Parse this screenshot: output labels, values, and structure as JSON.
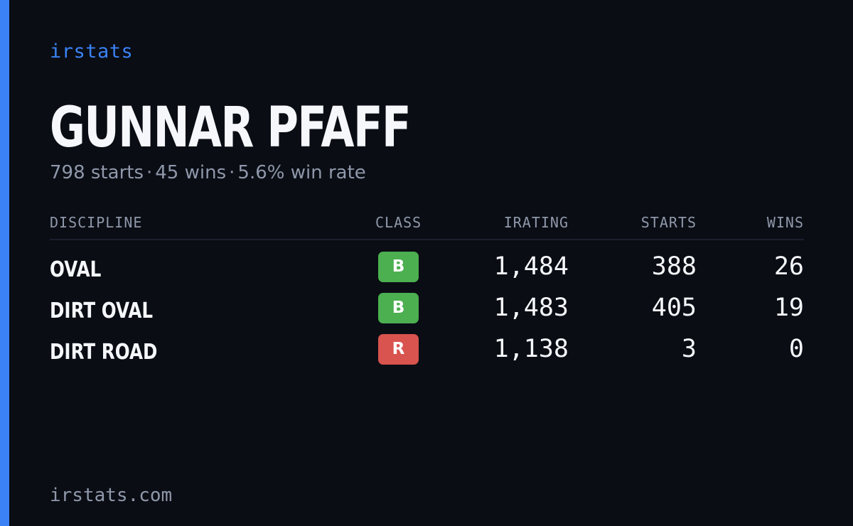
{
  "brand": "irstats",
  "driver": {
    "name": "GUNNAR PFAFF"
  },
  "summary": {
    "starts": "798 starts",
    "wins": "45 wins",
    "win_rate": "5.6% win rate",
    "separator": "·"
  },
  "table": {
    "headers": {
      "discipline": "DISCIPLINE",
      "class": "CLASS",
      "irating": "IRATING",
      "starts": "STARTS",
      "wins": "WINS"
    },
    "rows": [
      {
        "discipline": "OVAL",
        "class": "B",
        "class_color": "#4caf50",
        "irating": "1,484",
        "starts": "388",
        "wins": "26"
      },
      {
        "discipline": "DIRT OVAL",
        "class": "B",
        "class_color": "#4caf50",
        "irating": "1,483",
        "starts": "405",
        "wins": "19"
      },
      {
        "discipline": "DIRT ROAD",
        "class": "R",
        "class_color": "#d9534f",
        "irating": "1,138",
        "starts": "3",
        "wins": "0"
      }
    ]
  },
  "footer": {
    "url": "irstats.com"
  },
  "colors": {
    "background": "#0a0d14",
    "accent": "#3b82f6",
    "text": "#f5f7fb",
    "muted": "#8f98aa"
  }
}
